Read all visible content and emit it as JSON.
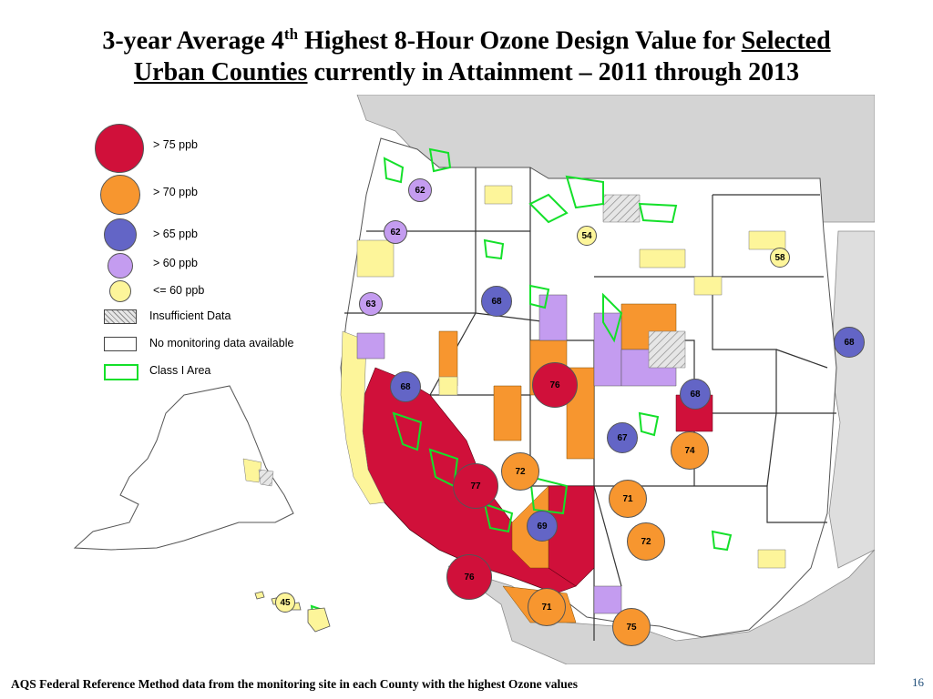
{
  "title": {
    "line1_prefix": "3-year Average 4",
    "line1_sup": "th",
    "line1_mid": " Highest 8-Hour Ozone Design Value for ",
    "line1_underlined": "Selected",
    "line2_underlined": "Urban Counties",
    "line2_suffix": " currently in Attainment – 2011 through 2013"
  },
  "legend": {
    "items": [
      {
        "label": "> 75 ppb",
        "color": "#d0103a"
      },
      {
        "label": "> 70 ppb",
        "color": "#f7962f"
      },
      {
        "label": "> 65 ppb",
        "color": "#6365c6"
      },
      {
        "label": "> 60 ppb",
        "color": "#c49cf0"
      },
      {
        "label": "<= 60 ppb",
        "color": "#fdf59a"
      },
      {
        "label": "Insufficient Data",
        "color": "hatched-gray"
      },
      {
        "label": "No monitoring data available",
        "color": "#ffffff"
      },
      {
        "label": "Class I Area",
        "color": "#14e02a"
      }
    ]
  },
  "sites": [
    {
      "value": "62",
      "category": "> 60 ppb"
    },
    {
      "value": "62",
      "category": "> 60 ppb"
    },
    {
      "value": "54",
      "category": "<= 60 ppb"
    },
    {
      "value": "58",
      "category": "<= 60 ppb"
    },
    {
      "value": "63",
      "category": "> 60 ppb"
    },
    {
      "value": "68",
      "category": "> 65 ppb"
    },
    {
      "value": "68",
      "category": "> 65 ppb"
    },
    {
      "value": "68",
      "category": "> 65 ppb"
    },
    {
      "value": "68",
      "category": "> 65 ppb"
    },
    {
      "value": "76",
      "category": "> 75 ppb"
    },
    {
      "value": "67",
      "category": "> 65 ppb"
    },
    {
      "value": "74",
      "category": "> 70 ppb"
    },
    {
      "value": "72",
      "category": "> 70 ppb"
    },
    {
      "value": "77",
      "category": "> 75 ppb"
    },
    {
      "value": "71",
      "category": "> 70 ppb"
    },
    {
      "value": "69",
      "category": "> 65 ppb"
    },
    {
      "value": "72",
      "category": "> 70 ppb"
    },
    {
      "value": "76",
      "category": "> 75 ppb"
    },
    {
      "value": "71",
      "category": "> 70 ppb"
    },
    {
      "value": "75",
      "category": "> 70 ppb"
    },
    {
      "value": "45",
      "category": "<= 60 ppb"
    }
  ],
  "footnote": "AQS Federal Reference Method data from the monitoring site in each County with the highest Ozone values",
  "page_number": "16",
  "colors": {
    "over75": "#d0103a",
    "over70": "#f7962f",
    "over65": "#6365c6",
    "over60": "#c49cf0",
    "under60": "#fdf59a",
    "class1": "#14e02a",
    "ocean": "#ffffff",
    "land_outside": "#d4d4d4"
  }
}
